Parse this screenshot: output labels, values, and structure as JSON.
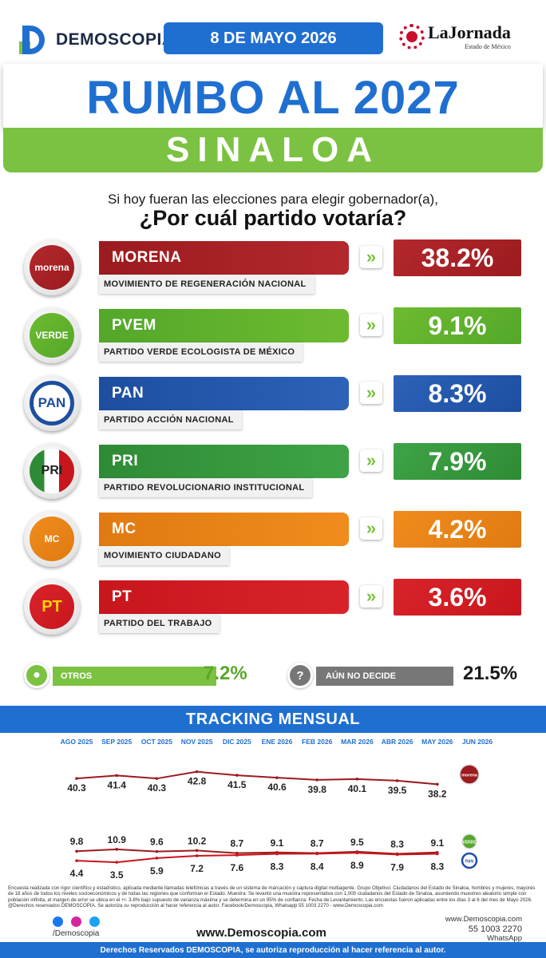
{
  "header": {
    "brand": "DEMOSCOPIA",
    "date": "8 DE MAYO 2026",
    "partner": "LaJornada",
    "partner_sub": "Estado de México",
    "title": "RUMBO AL 2027",
    "state": "SINALOA"
  },
  "question": {
    "line1": "Si hoy fueran las elecciones para elegir gobernador(a),",
    "line2": "¿Por cuál partido votaría?"
  },
  "parties": [
    {
      "logo": "morena",
      "name": "MORENA",
      "full": "MOVIMIENTO DE REGENERACIÓN NACIONAL",
      "pct": "38.2%",
      "color": "#9b1b1f",
      "color2": "#b3282d"
    },
    {
      "logo": "VERDE",
      "name": "PVEM",
      "full": "PARTIDO VERDE ECOLOGISTA DE MÉXICO",
      "pct": "9.1%",
      "color": "#54a72a",
      "color2": "#6dbb30"
    },
    {
      "logo": "PAN",
      "name": "PAN",
      "full": "PARTIDO ACCIÓN NACIONAL",
      "pct": "8.3%",
      "color": "#1d4ea0",
      "color2": "#2d62b8"
    },
    {
      "logo": "PRI",
      "name": "PRI",
      "full": "PARTIDO REVOLUCIONARIO INSTITUCIONAL",
      "pct": "7.9%",
      "color": "#2e8b35",
      "color2": "#3fa346"
    },
    {
      "logo": "MC",
      "name": "MC",
      "full": "MOVIMIENTO CIUDADANO",
      "pct": "4.2%",
      "color": "#e07a12",
      "color2": "#f08c1c"
    },
    {
      "logo": "PT",
      "name": "PT",
      "full": "PARTIDO DEL TRABAJO",
      "pct": "3.6%",
      "color": "#c8161d",
      "color2": "#d9232a"
    }
  ],
  "others": {
    "label": "OTROS",
    "value": "7.2%"
  },
  "undecided": {
    "label": "AÚN NO DECIDE",
    "value": "21.5%"
  },
  "tracking_title": "TRACKING MENSUAL",
  "chart_data": {
    "type": "line",
    "title": "TRACKING MENSUAL",
    "categories": [
      "AGO 2025",
      "SEP 2025",
      "OCT 2025",
      "NOV 2025",
      "DIC 2025",
      "ENE 2026",
      "FEB 2026",
      "MAR 2026",
      "ABR 2026",
      "MAY 2026",
      "JUN 2026"
    ],
    "series": [
      {
        "name": "MORENA",
        "color": "#9b1b1f",
        "values": [
          40.3,
          41.4,
          40.3,
          42.8,
          41.5,
          40.6,
          39.8,
          40.1,
          39.5,
          38.2,
          null
        ]
      },
      {
        "name": "PVEM",
        "color": "#9b1b1f",
        "values": [
          9.8,
          10.9,
          9.6,
          10.2,
          8.7,
          9.1,
          8.7,
          9.5,
          8.3,
          9.1,
          null
        ]
      },
      {
        "name": "PAN",
        "color": "#c8161d",
        "values": [
          4.4,
          3.5,
          5.9,
          7.2,
          7.6,
          8.3,
          8.4,
          8.9,
          7.9,
          8.3,
          null
        ]
      }
    ],
    "end_badges": [
      "morena",
      "VERDE",
      "PAN"
    ]
  },
  "footnote": "Encuesta realizada con rigor científico y estadístico, aplicada mediante llamadas telefónicas a través de un sistema de marcación y captura digital multiagente. Grupo Objetivo: Ciudadanos del Estado de Sinaloa, hombres y mujeres, mayores de 18 años de todos los niveles socioeconómicos y de todas las regiones que conforman el Estado. Muestra: Se levantó una muestra representativa con 1,000 ciudadanos del Estado de Sinaloa, asumiendo muestreo aleatorio simple con población infinita, el margen de error se ubica en el +/- 3.8% bajo supuesto de varianza máxima y se determina en un 95% de confianza. Fecha de Levantamiento. Las encuestas fueron aplicadas entre los días 3 al 6 del mes de Mayo 2026. @Derechos reservados DEMOSCOPIA. Se autoriza su reproducción al hacer referencia al autor, Facebook/Demoscopia, Whatsapp 55 1003 2270 - www.Demoscopia.com",
  "footer": {
    "handle": "/Demoscopia",
    "website": "www.Demoscopia.com",
    "contact_web": "www.Demoscopia.com",
    "phone": "55 1003 2270",
    "whatsapp": "WhatsApp",
    "rights": "Derechos Reservados DEMOSCOPIA, se autoriza reproducción al hacer referencia al autor."
  }
}
